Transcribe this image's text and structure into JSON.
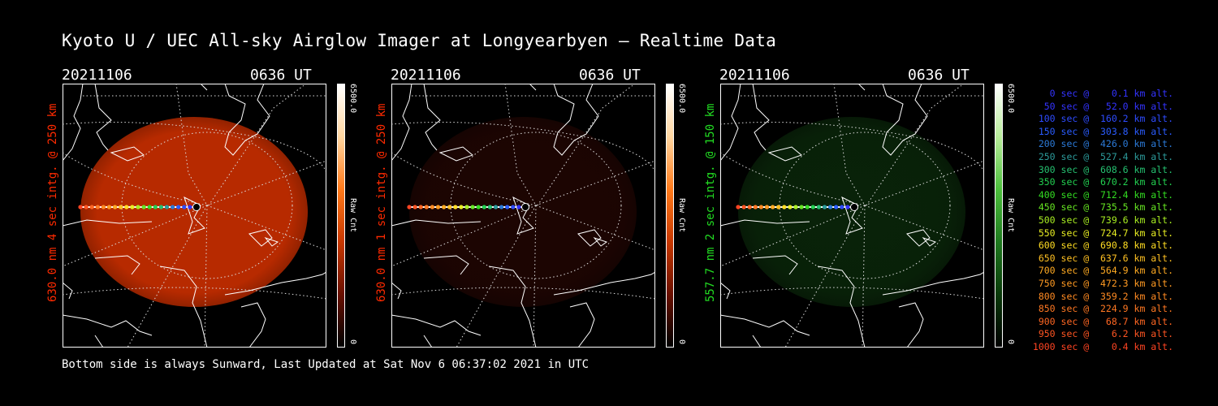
{
  "title": "Kyoto U / UEC All-sky Airglow Imager at Longyearbyen — Realtime Data",
  "footer": "Bottom side is always Sunward, Last Updated at Sat Nov  6 06:37:02 2021 in UTC",
  "panels": [
    {
      "date": "20211106",
      "time": "0636 UT",
      "side_label": "630.0 nm 4 sec intg. @ 250 km",
      "label_color": "#ff2a00",
      "colorbar_max": "6500.0",
      "colorbar_min": "0",
      "colorbar_unit": "Raw Cnt",
      "colormap": [
        "#000000",
        "#6a1000",
        "#c83800",
        "#ff7a1a",
        "#ffd6a0",
        "#ffffff"
      ],
      "image_color": "#b72a00",
      "image_brightness": 1.0
    },
    {
      "date": "20211106",
      "time": "0636 UT",
      "side_label": "630.0 nm 1 sec intg. @ 250 km",
      "label_color": "#ff2a00",
      "colorbar_max": "6500.0",
      "colorbar_min": "0",
      "colorbar_unit": "Raw Cnt",
      "colormap": [
        "#000000",
        "#6a1000",
        "#c83800",
        "#ff7a1a",
        "#ffd6a0",
        "#ffffff"
      ],
      "image_color": "#3a0a04",
      "image_brightness": 0.3
    },
    {
      "date": "20211106",
      "time": "0636 UT",
      "side_label": "557.7 nm 2 sec intg. @ 150 km",
      "label_color": "#22dd22",
      "colorbar_max": "6500.0",
      "colorbar_min": "0",
      "colorbar_unit": "Raw Cnt",
      "colormap": [
        "#000000",
        "#0a3a0a",
        "#1f7a1f",
        "#4cbf3c",
        "#b8ec9a",
        "#ffffff"
      ],
      "image_color": "#0f3a0f",
      "image_brightness": 0.4
    }
  ],
  "legend": [
    {
      "text": "   0 sec @    0.1 km alt.",
      "color": "#3333ff"
    },
    {
      "text": "  50 sec @   52.0 km alt.",
      "color": "#3333ff"
    },
    {
      "text": " 100 sec @  160.2 km alt.",
      "color": "#2e4cff"
    },
    {
      "text": " 150 sec @  303.8 km alt.",
      "color": "#2a5cff"
    },
    {
      "text": " 200 sec @  426.0 km alt.",
      "color": "#2b7ad8"
    },
    {
      "text": " 250 sec @  527.4 km alt.",
      "color": "#2c9a9a"
    },
    {
      "text": " 300 sec @  608.6 km alt.",
      "color": "#25c070"
    },
    {
      "text": " 350 sec @  670.2 km alt.",
      "color": "#22d050"
    },
    {
      "text": " 400 sec @  712.4 km alt.",
      "color": "#33dd22"
    },
    {
      "text": " 450 sec @  735.5 km alt.",
      "color": "#66e622"
    },
    {
      "text": " 500 sec @  739.6 km alt.",
      "color": "#a8ee22"
    },
    {
      "text": " 550 sec @  724.7 km alt.",
      "color": "#e8ee22"
    },
    {
      "text": " 600 sec @  690.8 km alt.",
      "color": "#ffdd22"
    },
    {
      "text": " 650 sec @  637.6 km alt.",
      "color": "#ffc022"
    },
    {
      "text": " 700 sec @  564.9 km alt.",
      "color": "#ffaa22"
    },
    {
      "text": " 750 sec @  472.3 km alt.",
      "color": "#ff9a22"
    },
    {
      "text": " 800 sec @  359.2 km alt.",
      "color": "#ff8a22"
    },
    {
      "text": " 850 sec @  224.9 km alt.",
      "color": "#ff7822"
    },
    {
      "text": " 900 sec @   68.7 km alt.",
      "color": "#ff6622"
    },
    {
      "text": " 950 sec @    6.2 km alt.",
      "color": "#ff5522"
    },
    {
      "text": "1000 sec @    0.4 km alt.",
      "color": "#ff4422"
    }
  ]
}
